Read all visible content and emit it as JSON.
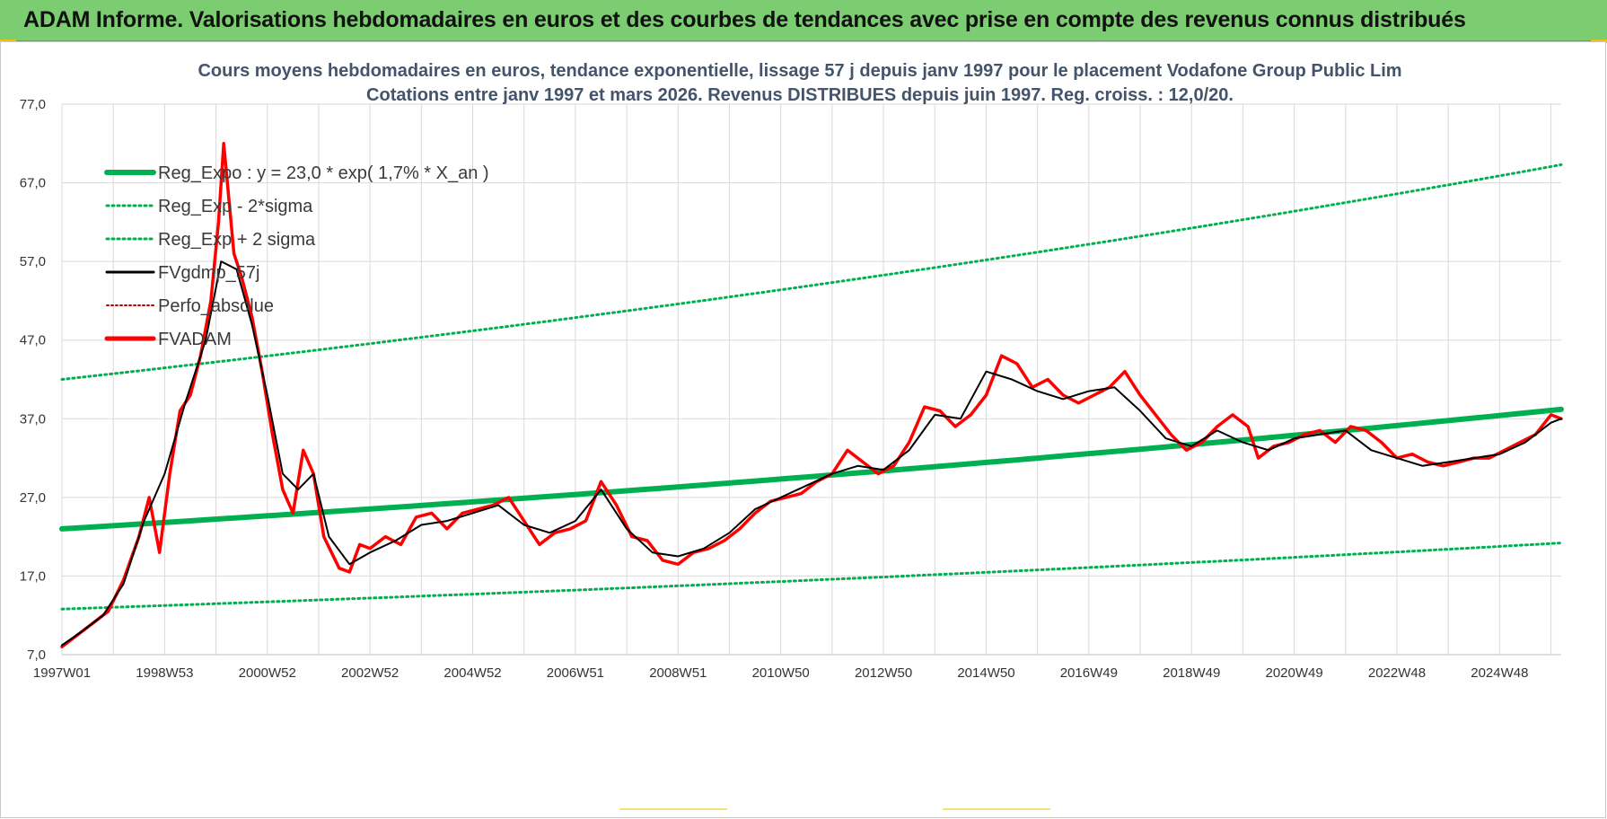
{
  "banner": {
    "title": "ADAM Informe. Valorisations hebdomadaires en euros et des courbes de tendances avec prise en compte des revenus connus distribués"
  },
  "colors": {
    "banner_bg": "#7ccd72",
    "reg_expo": "#00b050",
    "sigma": "#00b050",
    "fvgdmp": "#000000",
    "perfo": "#c00000",
    "fvadam": "#ff0000",
    "grid": "#d9d9d9"
  },
  "chart_data": {
    "type": "line",
    "title_line1": "Cours moyens hebdomadaires en euros, tendance exponentielle, lissage 57 j depuis janv 1997 pour le placement Vodafone Group Public Lim",
    "title_line2": "Cotations entre janv 1997 et mars 2026. Revenus DISTRIBUES depuis juin 1997. Reg. croiss. : 12,0/20.",
    "xlabel": "",
    "ylabel": "",
    "ylim": [
      7,
      77
    ],
    "yticks": [
      "77,0",
      "67,0",
      "57,0",
      "47,0",
      "37,0",
      "27,0",
      "17,0",
      "7,0"
    ],
    "xlim": [
      1997.0,
      2026.2
    ],
    "xticks": [
      {
        "label": "1997W01",
        "x": 1997.0
      },
      {
        "label": "1998W53",
        "x": 1999.0
      },
      {
        "label": "2000W52",
        "x": 2001.0
      },
      {
        "label": "2002W52",
        "x": 2003.0
      },
      {
        "label": "2004W52",
        "x": 2005.0
      },
      {
        "label": "2006W51",
        "x": 2007.0
      },
      {
        "label": "2008W51",
        "x": 2009.0
      },
      {
        "label": "2010W50",
        "x": 2011.0
      },
      {
        "label": "2012W50",
        "x": 2013.0
      },
      {
        "label": "2014W50",
        "x": 2015.0
      },
      {
        "label": "2016W49",
        "x": 2017.0
      },
      {
        "label": "2018W49",
        "x": 2019.0
      },
      {
        "label": "2020W49",
        "x": 2021.0
      },
      {
        "label": "2022W48",
        "x": 2023.0
      },
      {
        "label": "2024W48",
        "x": 2025.0
      }
    ],
    "grid": true,
    "legend_position": "top-left",
    "legend": [
      {
        "name": "Reg_Expo : y = 23,0 * exp( 1,7% *  X_an )",
        "style": "solid-thick",
        "color": "#00b050"
      },
      {
        "name": "Reg_Exp - 2*sigma",
        "style": "dotted",
        "color": "#00b050"
      },
      {
        "name": "Reg_Exp + 2 sigma",
        "style": "dotted",
        "color": "#00b050"
      },
      {
        "name": "FVgdmp_57j",
        "style": "solid",
        "color": "#000000"
      },
      {
        "name": "Perfo_absolue",
        "style": "dotted",
        "color": "#c00000"
      },
      {
        "name": "FVADAM",
        "style": "solid-thick",
        "color": "#ff0000"
      }
    ],
    "series": [
      {
        "name": "Reg_Expo : y = 23,0 * exp( 1,7% *  X_an )",
        "x": [
          1997.0,
          2026.2
        ],
        "y": [
          23.0,
          38.2
        ]
      },
      {
        "name": "Reg_Exp - 2*sigma",
        "x": [
          1997.0,
          2026.2
        ],
        "y": [
          12.8,
          21.2
        ]
      },
      {
        "name": "Reg_Exp + 2 sigma",
        "x": [
          1997.0,
          2026.2
        ],
        "y": [
          42.0,
          69.3
        ]
      },
      {
        "name": "FVADAM",
        "x": [
          1997.0,
          1997.3,
          1997.6,
          1997.9,
          1998.2,
          1998.5,
          1998.7,
          1998.9,
          1999.1,
          1999.3,
          1999.5,
          1999.7,
          1999.9,
          2000.05,
          2000.15,
          2000.35,
          2000.5,
          2000.7,
          2000.9,
          2001.1,
          2001.3,
          2001.5,
          2001.7,
          2001.9,
          2002.1,
          2002.4,
          2002.6,
          2002.8,
          2003.0,
          2003.3,
          2003.6,
          2003.9,
          2004.2,
          2004.5,
          2004.8,
          2005.1,
          2005.4,
          2005.7,
          2006.0,
          2006.3,
          2006.6,
          2006.9,
          2007.2,
          2007.5,
          2007.8,
          2008.1,
          2008.4,
          2008.7,
          2009.0,
          2009.3,
          2009.6,
          2009.9,
          2010.2,
          2010.5,
          2010.8,
          2011.1,
          2011.4,
          2011.7,
          2012.0,
          2012.3,
          2012.6,
          2012.9,
          2013.2,
          2013.5,
          2013.8,
          2014.1,
          2014.4,
          2014.7,
          2015.0,
          2015.3,
          2015.6,
          2015.9,
          2016.2,
          2016.5,
          2016.8,
          2017.1,
          2017.4,
          2017.7,
          2018.0,
          2018.3,
          2018.6,
          2018.9,
          2019.2,
          2019.5,
          2019.8,
          2020.1,
          2020.3,
          2020.6,
          2020.9,
          2021.2,
          2021.5,
          2021.8,
          2022.1,
          2022.4,
          2022.7,
          2023.0,
          2023.3,
          2023.6,
          2023.9,
          2024.2,
          2024.5,
          2024.8,
          2025.1,
          2025.4,
          2025.7,
          2026.0,
          2026.2
        ],
        "y": [
          8.0,
          9.5,
          11.0,
          12.5,
          16.5,
          22.0,
          27.0,
          20.0,
          30.0,
          38.0,
          40.0,
          45.0,
          52.0,
          62.0,
          72.0,
          58.0,
          55.0,
          50.0,
          43.0,
          35.0,
          28.0,
          25.0,
          33.0,
          30.0,
          22.0,
          18.0,
          17.5,
          21.0,
          20.5,
          22.0,
          21.0,
          24.5,
          25.0,
          23.0,
          25.0,
          25.5,
          26.0,
          27.0,
          24.0,
          21.0,
          22.5,
          23.0,
          24.0,
          29.0,
          26.0,
          22.0,
          21.5,
          19.0,
          18.5,
          20.0,
          20.5,
          21.5,
          23.0,
          25.0,
          26.5,
          27.0,
          27.5,
          29.0,
          30.0,
          33.0,
          31.5,
          30.0,
          31.0,
          34.0,
          38.5,
          38.0,
          36.0,
          37.5,
          40.0,
          45.0,
          44.0,
          41.0,
          42.0,
          40.0,
          39.0,
          40.0,
          41.0,
          43.0,
          40.0,
          37.5,
          35.0,
          33.0,
          34.0,
          36.0,
          37.5,
          36.0,
          32.0,
          33.5,
          34.0,
          35.0,
          35.5,
          34.0,
          36.0,
          35.5,
          34.0,
          32.0,
          32.5,
          31.5,
          31.0,
          31.5,
          32.0,
          32.0,
          33.0,
          34.0,
          35.0,
          37.5,
          37.0
        ]
      },
      {
        "name": "FVgdmp_57j",
        "x": [
          1997.0,
          1997.4,
          1997.8,
          1998.2,
          1998.6,
          1999.0,
          1999.4,
          1999.8,
          2000.1,
          2000.4,
          2000.7,
          2001.0,
          2001.3,
          2001.6,
          2001.9,
          2002.2,
          2002.6,
          2003.0,
          2003.5,
          2004.0,
          2004.5,
          2005.0,
          2005.5,
          2006.0,
          2006.5,
          2007.0,
          2007.5,
          2008.0,
          2008.5,
          2009.0,
          2009.5,
          2010.0,
          2010.5,
          2011.0,
          2011.5,
          2012.0,
          2012.5,
          2013.0,
          2013.5,
          2014.0,
          2014.5,
          2015.0,
          2015.5,
          2016.0,
          2016.5,
          2017.0,
          2017.5,
          2018.0,
          2018.5,
          2019.0,
          2019.5,
          2020.0,
          2020.5,
          2021.0,
          2021.5,
          2022.0,
          2022.5,
          2023.0,
          2023.5,
          2024.0,
          2024.5,
          2025.0,
          2025.5,
          2026.0,
          2026.2
        ],
        "y": [
          8.2,
          10.0,
          12.0,
          16.0,
          24.0,
          30.0,
          39.0,
          47.0,
          57.0,
          56.0,
          49.0,
          40.0,
          30.0,
          28.0,
          30.0,
          22.0,
          18.5,
          20.0,
          21.5,
          23.5,
          24.0,
          25.0,
          26.0,
          23.5,
          22.5,
          24.0,
          28.0,
          23.0,
          20.0,
          19.5,
          20.5,
          22.5,
          25.5,
          27.0,
          28.5,
          30.0,
          31.0,
          30.5,
          33.0,
          37.5,
          37.0,
          43.0,
          42.0,
          40.5,
          39.5,
          40.5,
          41.0,
          38.0,
          34.5,
          33.5,
          35.5,
          34.0,
          33.0,
          34.5,
          35.0,
          35.5,
          33.0,
          32.0,
          31.0,
          31.5,
          32.0,
          32.5,
          34.0,
          36.5,
          37.0
        ]
      }
    ]
  }
}
